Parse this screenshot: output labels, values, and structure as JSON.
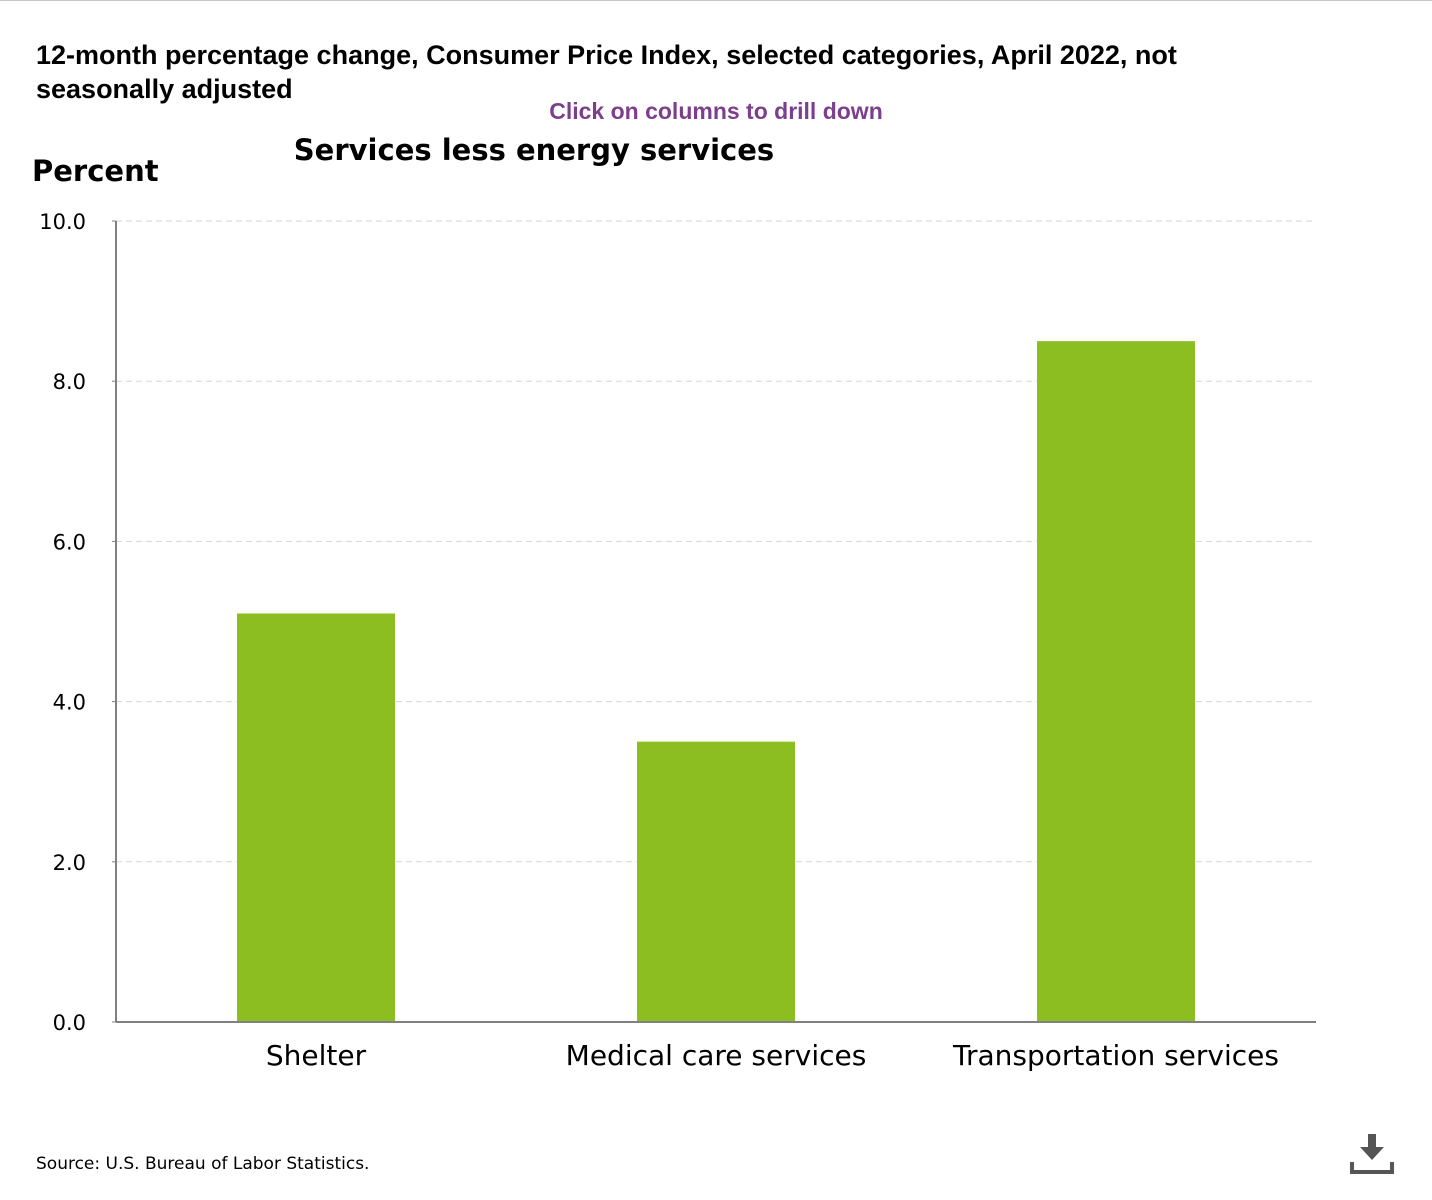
{
  "header": {
    "title": "12-month percentage change, Consumer Price Index, selected categories, April 2022, not seasonally adjusted",
    "drill_hint": "Click on columns to drill down"
  },
  "chart_data": {
    "type": "bar",
    "title": "Services less energy services",
    "ylabel": "Percent",
    "xlabel": "",
    "categories": [
      "Shelter",
      "Medical care services",
      "Transportation services"
    ],
    "series": [
      {
        "values": [
          5.1,
          3.5,
          8.5
        ]
      }
    ],
    "ylim": [
      0,
      10
    ],
    "yticks": [
      "0.0",
      "2.0",
      "4.0",
      "6.0",
      "8.0",
      "10.0"
    ],
    "grid": true,
    "legend": "none",
    "bar_color": "#8cbd21"
  },
  "footer": {
    "source": "Source: U.S. Bureau of Labor Statistics."
  },
  "icons": {
    "download": "download-icon"
  }
}
